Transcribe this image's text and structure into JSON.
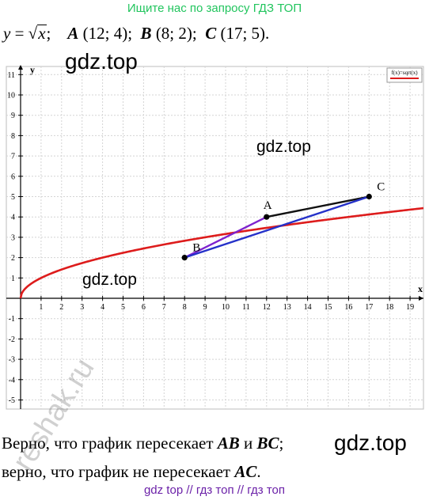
{
  "banner": "Ищите нас по запросу ГДЗ ТОП",
  "problem": {
    "lhs": "y",
    "eq": " = ",
    "arg": "x",
    "sep": ";",
    "points": [
      {
        "name": "A",
        "coords": "(12; 4);"
      },
      {
        "name": "B",
        "coords": "(8; 2);"
      },
      {
        "name": "C",
        "coords": "(17; 5)."
      }
    ]
  },
  "watermarks": {
    "w1": "gdz.top",
    "w2": "gdz.top",
    "w3": "gdz.top",
    "w4": "gdz.top",
    "bottom": "gdz top  //  гдз топ  //  гдз топ",
    "reshak": "reshak.ru"
  },
  "answer": {
    "line1_pre": "Верно, что график пересекает ",
    "line1_ab": "AB",
    "line1_mid": " и ",
    "line1_bc": "BC",
    "line1_end": ";",
    "line2_pre": "верно, что график не пересекает ",
    "line2_ac": "AC",
    "line2_end": "."
  },
  "chart_data": {
    "type": "line",
    "function": "sqrt(x)",
    "legend": "f(x)=sqrt(x)",
    "legend_position": "top-right",
    "xlabel": "x",
    "ylabel": "y",
    "xlim": [
      0,
      20
    ],
    "ylim": [
      -5.5,
      11.5
    ],
    "x_ticks": [
      1,
      2,
      3,
      4,
      5,
      6,
      7,
      8,
      9,
      10,
      11,
      12,
      13,
      14,
      15,
      16,
      17,
      18,
      19
    ],
    "y_ticks": [
      -5,
      -4,
      -3,
      -2,
      -1,
      1,
      2,
      3,
      4,
      5,
      6,
      7,
      8,
      9,
      10,
      11
    ],
    "grid": true,
    "series": [
      {
        "name": "f(x)=sqrt(x)",
        "color": "#dd1c1c"
      }
    ],
    "points": [
      {
        "label": "A",
        "x": 12,
        "y": 4
      },
      {
        "label": "B",
        "x": 8,
        "y": 2
      },
      {
        "label": "C",
        "x": 17,
        "y": 5
      }
    ],
    "segments": [
      {
        "from": "A",
        "to": "B",
        "color": "#7e22ce"
      },
      {
        "from": "A",
        "to": "C",
        "color": "#111111"
      },
      {
        "from": "B",
        "to": "C",
        "color": "#2531c9"
      }
    ]
  }
}
